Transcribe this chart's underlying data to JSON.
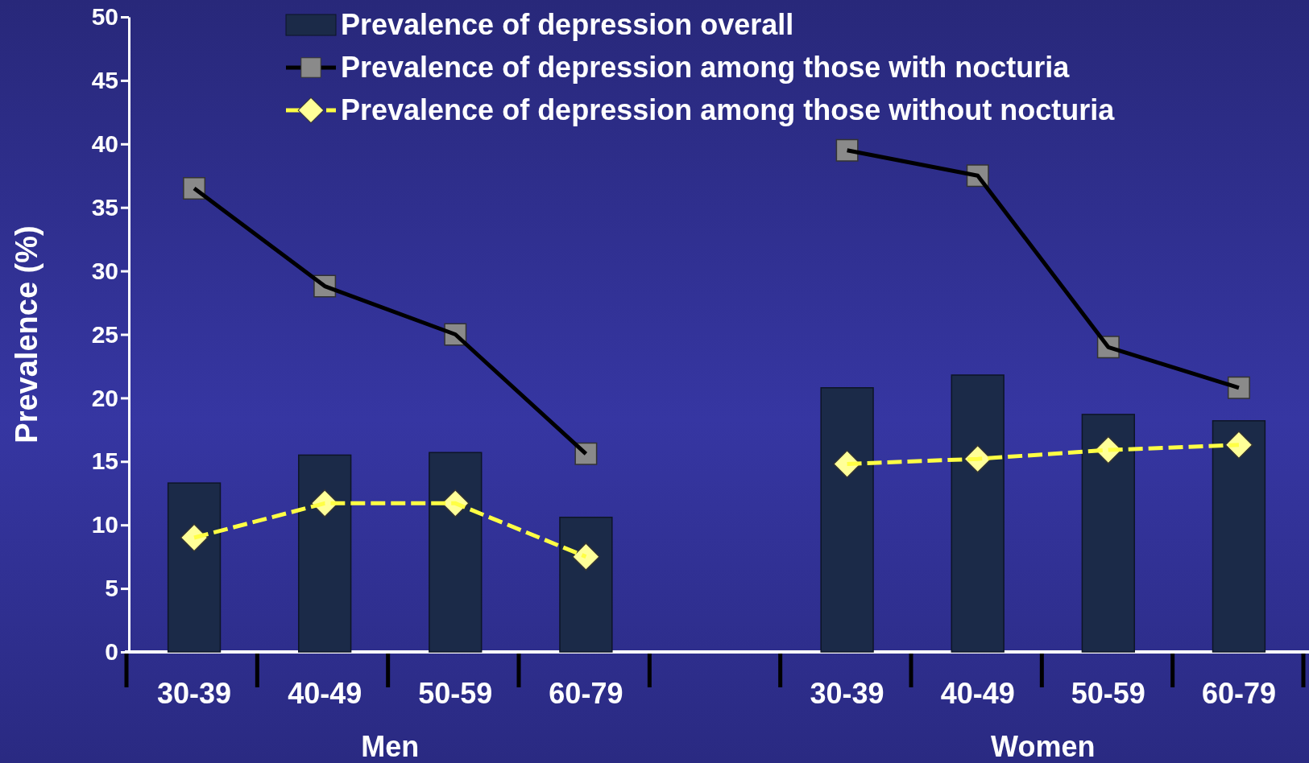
{
  "chart_data": {
    "type": "bar",
    "ylabel": "Prevalence (%)",
    "categories": [
      "30-39",
      "40-49",
      "50-59",
      "60-79",
      null,
      "30-39",
      "40-49",
      "50-59",
      "60-79"
    ],
    "series": [
      {
        "name": "Prevalence of depression overall",
        "color": "#1b2a48",
        "values": [
          13.3,
          15.5,
          15.7,
          10.6,
          null,
          20.8,
          21.8,
          18.7,
          18.2
        ]
      },
      {
        "name": "Prevalence of depression among those with nocturia",
        "type": "line",
        "color": "#000000",
        "marker": "square",
        "line_style": "solid",
        "values": [
          36.5,
          28.8,
          25.0,
          15.6,
          null,
          39.5,
          37.5,
          24.0,
          20.8
        ]
      },
      {
        "name": "Prevalence of depression among those without nocturia",
        "type": "line",
        "color": "#ffff44",
        "marker": "diamond",
        "line_style": "dashed",
        "values": [
          9.0,
          11.7,
          11.7,
          7.5,
          null,
          14.8,
          15.2,
          15.9,
          16.3
        ]
      }
    ],
    "ylim": [
      0,
      50
    ],
    "yticks": [
      0,
      5,
      10,
      15,
      20,
      25,
      30,
      35,
      40,
      45,
      50
    ],
    "annotations": [
      "Men",
      "Women"
    ],
    "legend": "top",
    "grid": false
  }
}
